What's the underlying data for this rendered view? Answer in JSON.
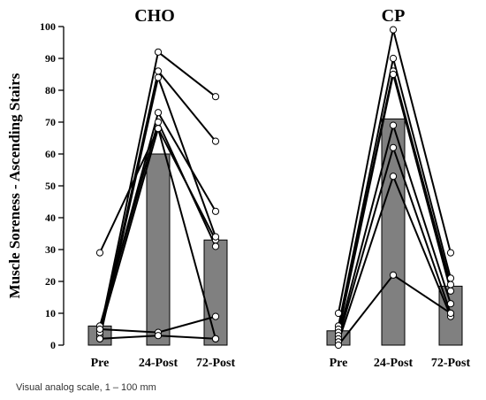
{
  "chart_data": {
    "type": "bar",
    "ylabel": "Muscle Soreness - Ascending Stairs",
    "ylim": [
      0,
      100
    ],
    "yticks": [
      0,
      10,
      20,
      30,
      40,
      50,
      60,
      70,
      80,
      90,
      100
    ],
    "categories": [
      "Pre",
      "24-Post",
      "72-Post"
    ],
    "colors": {
      "bar": "#808080",
      "axis": "#000000",
      "marker_fill": "#ffffff"
    },
    "panels": [
      {
        "title": "CHO",
        "bar_values": [
          6,
          60,
          33
        ],
        "participants": [
          [
            29,
            68,
            33
          ],
          [
            4,
            92,
            78
          ],
          [
            3,
            86,
            64
          ],
          [
            2,
            84,
            34
          ],
          [
            5,
            73,
            42
          ],
          [
            6,
            70,
            31
          ],
          [
            4,
            68,
            2
          ],
          [
            5,
            4,
            9
          ],
          [
            2,
            3,
            2
          ]
        ]
      },
      {
        "title": "CP",
        "bar_values": [
          4.5,
          71,
          18.5
        ],
        "participants": [
          [
            10,
            99,
            29
          ],
          [
            6,
            90,
            21
          ],
          [
            5,
            86,
            19
          ],
          [
            4,
            85,
            17
          ],
          [
            3,
            69,
            13
          ],
          [
            2,
            62,
            10
          ],
          [
            1,
            53,
            9
          ],
          [
            0,
            22,
            10
          ]
        ]
      }
    ],
    "caption": "Visual analog scale, 1 – 100 mm"
  }
}
